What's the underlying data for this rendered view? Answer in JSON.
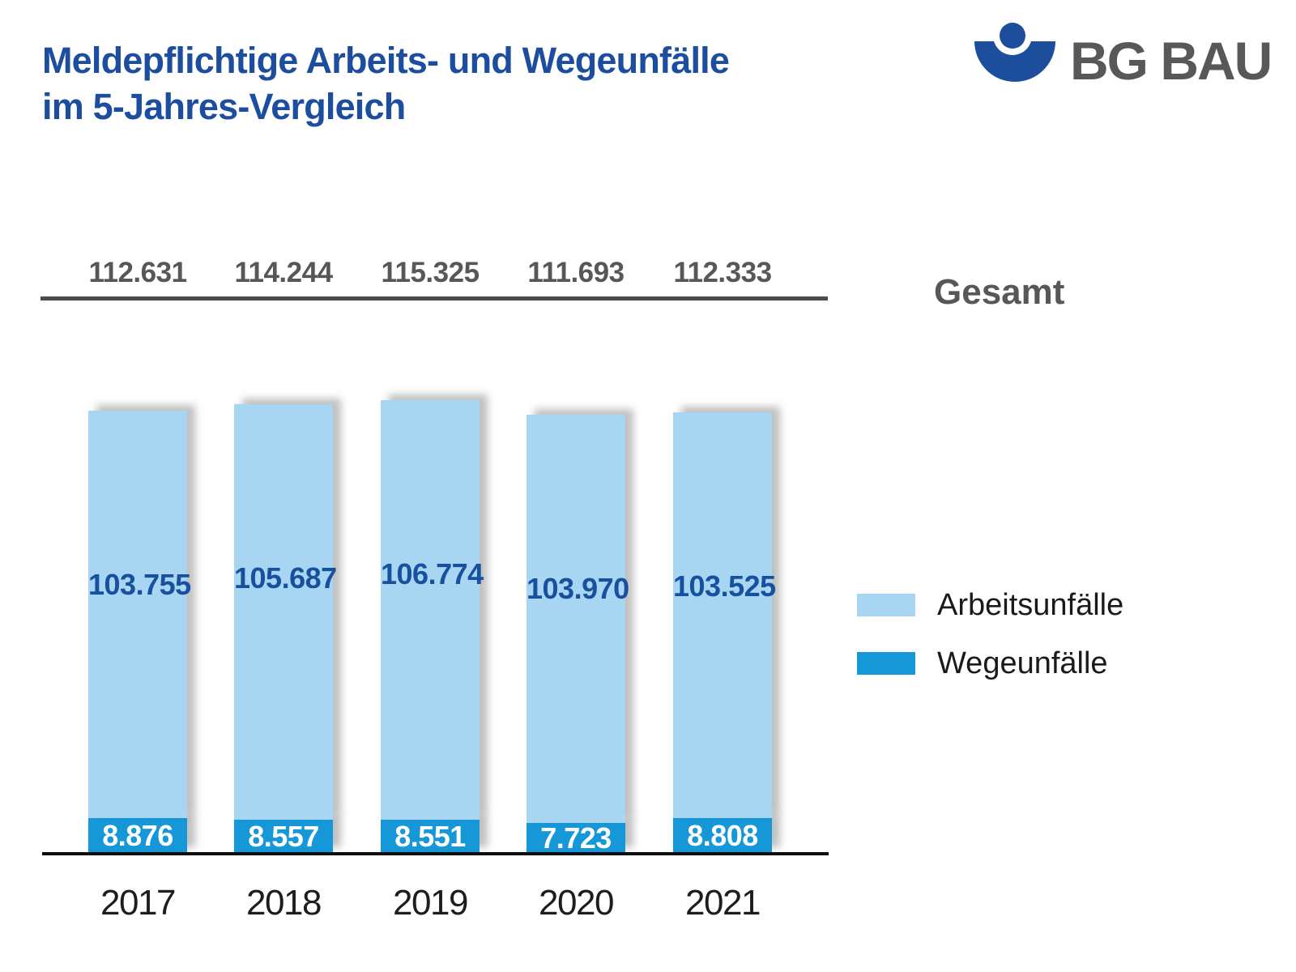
{
  "title": {
    "line1": "Meldepflichtige Arbeits- und Wegeunfälle",
    "line2": "im 5-Jahres-Vergleich"
  },
  "logo": {
    "text": "BG BAU",
    "mark": "protected-person-icon",
    "mark_color": "#1C4E9C",
    "text_color": "#58585A"
  },
  "labels": {
    "total_label": "Gesamt"
  },
  "legend": [
    {
      "label": "Arbeitsunfälle",
      "color": "#A8D6F2"
    },
    {
      "label": "Wegeunfälle",
      "color": "#1697D8"
    }
  ],
  "colors": {
    "title_blue": "#1D4D9F",
    "bar_light_blue": "#A8D6F2",
    "bar_dark_blue": "#1697D8",
    "bar_label_blue": "#17509E",
    "bar_label_white": "#FFFFFF",
    "total_gray": "#575756",
    "top_line_gray": "#4B4B4D",
    "baseline_black": "#0D0D0D"
  },
  "chart_data": {
    "type": "bar",
    "stacked": true,
    "title": "Meldepflichtige Arbeits- und Wegeunfälle im 5-Jahres-Vergleich",
    "categories": [
      "2017",
      "2018",
      "2019",
      "2020",
      "2021"
    ],
    "series": [
      {
        "name": "Arbeitsunfälle",
        "color": "#A8D6F2",
        "values": [
          103755,
          105687,
          106774,
          103970,
          103525
        ]
      },
      {
        "name": "Wegeunfälle",
        "color": "#1697D8",
        "values": [
          8876,
          8557,
          8551,
          7723,
          8808
        ]
      }
    ],
    "totals": [
      112631,
      114244,
      115325,
      111693,
      112333
    ],
    "totals_row_label": "Gesamt",
    "number_format": "de-DE dot thousands separator",
    "value_labels": "inside segments and totals above chart",
    "legend_position": "right",
    "grid": false,
    "axes": "no visible value axis; category axis at bottom"
  }
}
